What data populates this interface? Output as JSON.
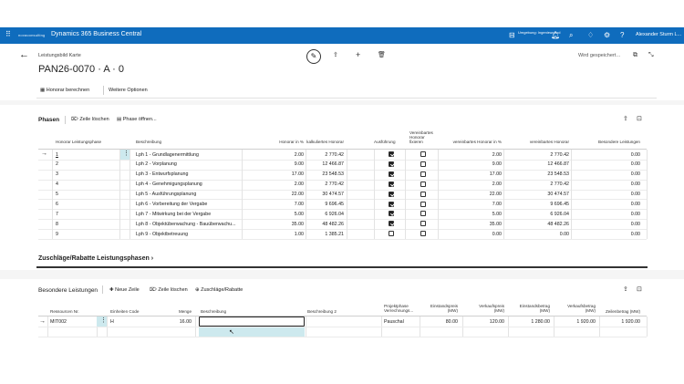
{
  "topbar": {
    "app_name": "Dynamics 365 Business Central",
    "logo_text": "novaconsulting",
    "environment": "Umgebung: Ingenieurprod",
    "user": "Alexander Sturm L..."
  },
  "page": {
    "breadcrumb": "Leistungsbild Karte",
    "title": "PAN26-0070 · A · 0",
    "saved_status": "Wird gespeichert…"
  },
  "actions": {
    "calc_fee": "Honorar berechnen",
    "more_options": "Weitere Optionen"
  },
  "phases": {
    "section_title": "Phasen",
    "delete_row": "Zeile löschen",
    "open_phase": "Phase öffnen...",
    "columns": [
      "Honorar Leistungsphase",
      "Beschreibung",
      "Honorar in %",
      "kalkuliertes Honorar",
      "Ausführung",
      "Vereinbartes Honorar fixieren",
      "vereinbartes Honorar in %",
      "vereinbartes Honorar",
      "Besondere Leistungen"
    ],
    "rows": [
      {
        "phase": "1",
        "desc": "Lph 1 - Grundlagenermittlung",
        "pct": "2.00",
        "calc": "2 770.42",
        "exec": true,
        "fix": false,
        "agreed_pct": "2.00",
        "agreed": "2 770.42",
        "special": "0.00"
      },
      {
        "phase": "2",
        "desc": "Lph 2 - Vorplanung",
        "pct": "9.00",
        "calc": "12 466.87",
        "exec": true,
        "fix": false,
        "agreed_pct": "9.00",
        "agreed": "12 466.87",
        "special": "0.00"
      },
      {
        "phase": "3",
        "desc": "Lph 3 - Entwurfsplanung",
        "pct": "17.00",
        "calc": "23 548.53",
        "exec": true,
        "fix": false,
        "agreed_pct": "17.00",
        "agreed": "23 548.53",
        "special": "0.00"
      },
      {
        "phase": "4",
        "desc": "Lph 4 - Genehmigungsplanung",
        "pct": "2.00",
        "calc": "2 770.42",
        "exec": true,
        "fix": false,
        "agreed_pct": "2.00",
        "agreed": "2 770.42",
        "special": "0.00"
      },
      {
        "phase": "5",
        "desc": "Lph 5 - Ausführungsplanung",
        "pct": "22.00",
        "calc": "30 474.57",
        "exec": true,
        "fix": false,
        "agreed_pct": "22.00",
        "agreed": "30 474.57",
        "special": "0.00"
      },
      {
        "phase": "6",
        "desc": "Lph 6 - Vorbereitung der Vergabe",
        "pct": "7.00",
        "calc": "9 696.45",
        "exec": true,
        "fix": false,
        "agreed_pct": "7.00",
        "agreed": "9 696.45",
        "special": "0.00"
      },
      {
        "phase": "7",
        "desc": "Lph 7 - Mitwirkung bei der Vergabe",
        "pct": "5.00",
        "calc": "6 926.04",
        "exec": true,
        "fix": false,
        "agreed_pct": "5.00",
        "agreed": "6 926.04",
        "special": "0.00"
      },
      {
        "phase": "8",
        "desc": "Lph 8 - Objektüberwachung - Bauüberwachu...",
        "pct": "35.00",
        "calc": "48 482.26",
        "exec": true,
        "fix": false,
        "agreed_pct": "35.00",
        "agreed": "48 482.26",
        "special": "0.00"
      },
      {
        "phase": "9",
        "desc": "Lph 9 - Objektbetreuung",
        "pct": "1.00",
        "calc": "1 385.21",
        "exec": false,
        "fix": false,
        "agreed_pct": "0.00",
        "agreed": "0.00",
        "special": "0.00"
      }
    ]
  },
  "surcharges": {
    "title": "Zuschläge/Rabatte Leistungsphasen"
  },
  "special": {
    "section_title": "Besondere Leistungen",
    "new_row": "Neue Zeile",
    "delete_row": "Zeile löschen",
    "surcharges": "Zuschläge/Rabatte",
    "columns": [
      "Ressourcen Nr.",
      "Einheiten Code",
      "Menge",
      "Beschreibung",
      "Beschreibung 2",
      "Projektphase Verrechnungs...",
      "Einstandspreis (MW)",
      "Verkaufspreis (MW)",
      "Einstandsbetrag (MW)",
      "Verkaufsbetrag (MW)",
      "Zeilenbetrag (MW)"
    ],
    "row": {
      "resource": "MIT002",
      "unit": "H",
      "qty": "16.00",
      "desc": "",
      "desc2": "",
      "billing": "Pauschal",
      "unit_cost": "80.00",
      "unit_price": "120.00",
      "cost_amount": "1 280.00",
      "sales_amount": "1 920.00",
      "line_amount": "1 920.00"
    }
  }
}
